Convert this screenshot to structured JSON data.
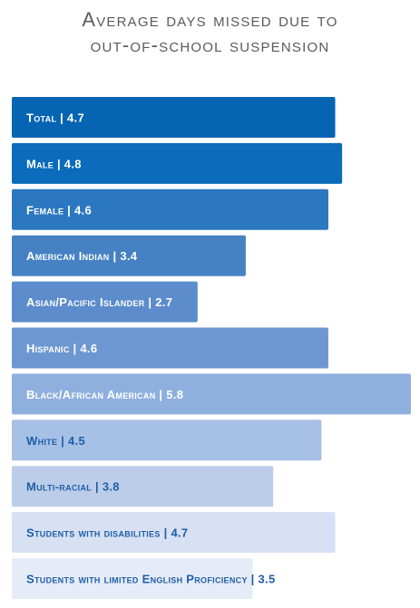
{
  "title_lines": [
    "Average days missed due to",
    "out-of-school suspension"
  ],
  "chart_data": {
    "type": "bar",
    "orientation": "horizontal",
    "title": "Average days missed due to out-of-school suspension",
    "categories": [
      "Total",
      "Male",
      "Female",
      "American Indian",
      "Asian/Pacific Islander",
      "Hispanic",
      "Black/African American",
      "White",
      "Multi-racial",
      "Students with disabilities",
      "Students with limited English Proficiency"
    ],
    "values": [
      4.7,
      4.8,
      4.6,
      3.4,
      2.7,
      4.6,
      5.8,
      4.5,
      3.8,
      4.7,
      3.5
    ],
    "bar_colors": [
      "#0565b3",
      "#0a6cba",
      "#2c78c0",
      "#4681c3",
      "#5c8ccb",
      "#6d97d1",
      "#8fb0de",
      "#a7c0e5",
      "#bccde9",
      "#d8e1f3",
      "#e6ecf7"
    ],
    "label_colors": [
      "#ffffff",
      "#ffffff",
      "#ffffff",
      "#ffffff",
      "#ffffff",
      "#ffffff",
      "#ffffff",
      "#1f5fa8",
      "#1f5fa8",
      "#1f5fa8",
      "#1f5fa8"
    ],
    "xlim": [
      0,
      5.8
    ],
    "grid": false,
    "legend": "none"
  }
}
